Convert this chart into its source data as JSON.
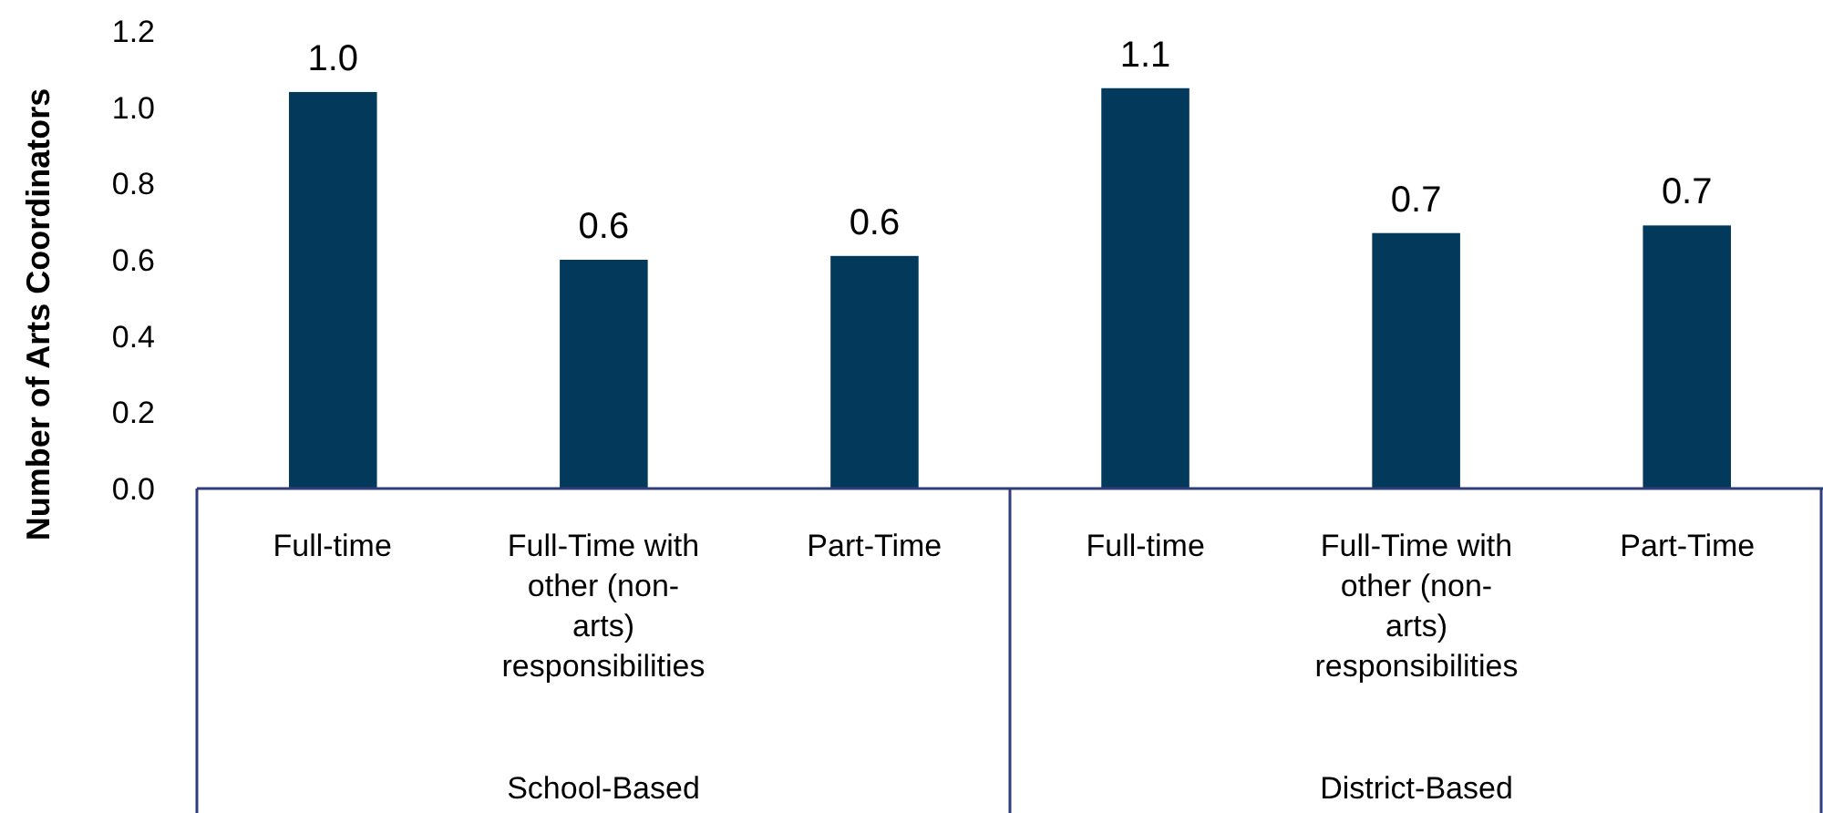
{
  "chart_data": {
    "type": "bar",
    "ylabel": "Number of Arts Coordinators",
    "categories": [
      "Full-time",
      "Full-Time with other (non-arts) responsibilities",
      "Part-Time",
      "Full-time",
      "Full-Time with other (non-arts) responsibilities",
      "Part-Time"
    ],
    "values": [
      1.04,
      0.6,
      0.61,
      1.05,
      0.67,
      0.69
    ],
    "value_labels": [
      "1.0",
      "0.6",
      "0.6",
      "1.1",
      "0.7",
      "0.7"
    ],
    "color": "#033a5c",
    "ylim": [
      0,
      1.2
    ],
    "yticks": [
      {
        "value": 0,
        "label": "0.0"
      },
      {
        "value": 0.2,
        "label": "0.2"
      },
      {
        "value": 0.4,
        "label": "0.4"
      },
      {
        "value": 0.6,
        "label": "0.6"
      },
      {
        "value": 0.8,
        "label": "0.8"
      },
      {
        "value": 1.0,
        "label": "1.0"
      },
      {
        "value": 1.2,
        "label": "1.2"
      }
    ],
    "annotations": [
      "School-Based",
      "District-Based"
    ]
  }
}
